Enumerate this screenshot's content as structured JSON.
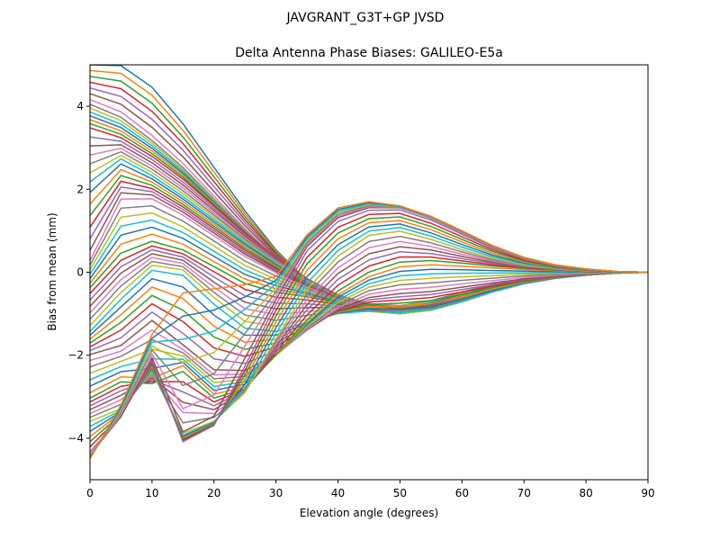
{
  "chart_data": {
    "type": "line",
    "suptitle": "JAVGRANT_G3T+GP JVSD",
    "title": "Delta Antenna Phase Biases: GALILEO-E5a",
    "xlabel": "Elevation angle (degrees)",
    "ylabel": "Bias from mean (mm)",
    "xlim": [
      0,
      90
    ],
    "ylim": [
      -5,
      5
    ],
    "xticks": [
      0,
      10,
      20,
      30,
      40,
      50,
      60,
      70,
      80,
      90
    ],
    "yticks": [
      -4,
      -2,
      0,
      2,
      4
    ],
    "xtick_labels": [
      "0",
      "10",
      "20",
      "30",
      "40",
      "50",
      "60",
      "70",
      "80",
      "90"
    ],
    "ytick_labels": [
      "−4",
      "−2",
      "0",
      "2",
      "4"
    ],
    "grid": false,
    "legend": "none",
    "x": [
      0,
      5,
      10,
      15,
      20,
      25,
      30,
      35,
      40,
      45,
      50,
      55,
      60,
      65,
      70,
      75,
      80,
      85,
      90
    ],
    "series_count": 72,
    "series_note": "one curve per azimuth bin; curves vary smoothly from steep positive start (≈+5 mm at 0°) to steep negative start (≈−4.5 mm at 0°), all converging to 0 mm at 90°",
    "series": [
      {
        "name": "s1",
        "values": [
          5.0,
          4.98,
          4.46,
          3.58,
          2.53,
          1.48,
          0.54,
          -0.2,
          -0.69,
          -0.92,
          -0.91,
          -0.73,
          -0.48,
          -0.29,
          -0.16,
          -0.08,
          -0.04,
          -0.02,
          0.0
        ]
      },
      {
        "name": "s2",
        "values": [
          4.1,
          3.78,
          3.21,
          2.55,
          1.78,
          1.02,
          0.33,
          -0.2,
          -0.55,
          -0.75,
          -0.8,
          -0.68,
          -0.48,
          -0.29,
          -0.16,
          -0.08,
          -0.04,
          -0.02,
          0.0
        ]
      },
      {
        "name": "s3",
        "values": [
          3.5,
          3.25,
          2.8,
          2.25,
          1.6,
          0.95,
          0.35,
          -0.15,
          -0.55,
          -0.8,
          -0.9,
          -0.8,
          -0.6,
          -0.38,
          -0.22,
          -0.12,
          -0.06,
          -0.02,
          0.0
        ]
      },
      {
        "name": "s4",
        "values": [
          2.1,
          2.7,
          2.3,
          1.8,
          1.25,
          0.7,
          0.2,
          -0.25,
          -0.6,
          -0.85,
          -0.95,
          -0.85,
          -0.65,
          -0.42,
          -0.25,
          -0.13,
          -0.06,
          -0.02,
          0.0
        ]
      },
      {
        "name": "s5",
        "values": [
          0.3,
          1.8,
          1.8,
          1.4,
          0.9,
          0.4,
          0.0,
          -0.35,
          -0.65,
          -0.85,
          -0.95,
          -0.88,
          -0.68,
          -0.45,
          -0.27,
          -0.14,
          -0.07,
          -0.02,
          0.0
        ]
      },
      {
        "name": "s6",
        "values": [
          -0.4,
          0.4,
          0.7,
          0.5,
          0.1,
          -0.3,
          -0.5,
          -0.6,
          -0.75,
          -0.9,
          -1.0,
          -0.9,
          -0.7,
          -0.46,
          -0.27,
          -0.14,
          -0.07,
          -0.02,
          0.0
        ]
      },
      {
        "name": "s7",
        "values": [
          -1.4,
          -0.6,
          0.1,
          0.0,
          -0.7,
          -1.3,
          -1.4,
          -1.2,
          -1.0,
          -0.95,
          -1.0,
          -0.92,
          -0.72,
          -0.48,
          -0.28,
          -0.15,
          -0.07,
          -0.02,
          0.0
        ]
      },
      {
        "name": "s8",
        "values": [
          -2.0,
          -1.8,
          -1.2,
          -1.8,
          -2.4,
          -2.4,
          -2.0,
          -1.4,
          -0.9,
          -0.6,
          -0.5,
          -0.45,
          -0.35,
          -0.25,
          -0.16,
          -0.09,
          -0.04,
          -0.01,
          0.0
        ]
      },
      {
        "name": "s9",
        "values": [
          -3.0,
          -2.6,
          -2.7,
          -2.3,
          -3.0,
          -2.8,
          -2.0,
          -1.2,
          -0.5,
          -0.05,
          0.2,
          0.25,
          0.2,
          0.14,
          0.09,
          0.05,
          0.02,
          0.01,
          0.0
        ]
      },
      {
        "name": "s10",
        "values": [
          -3.6,
          -3.3,
          -2.4,
          -3.9,
          -3.6,
          -2.9,
          -1.6,
          -0.4,
          0.4,
          0.9,
          1.0,
          0.8,
          0.55,
          0.33,
          0.18,
          0.09,
          0.04,
          0.01,
          0.0
        ]
      },
      {
        "name": "s11",
        "values": [
          -4.4,
          -3.5,
          -2.1,
          -4.1,
          -3.7,
          -2.2,
          -0.7,
          0.6,
          1.3,
          1.55,
          1.55,
          1.3,
          0.95,
          0.6,
          0.33,
          0.16,
          0.07,
          0.02,
          0.0
        ]
      },
      {
        "name": "s12",
        "values": [
          -4.5,
          -3.2,
          -1.5,
          -0.5,
          -0.4,
          -0.3,
          -0.1,
          0.9,
          1.55,
          1.7,
          1.6,
          1.35,
          1.0,
          0.64,
          0.36,
          0.18,
          0.08,
          0.02,
          0.0
        ]
      }
    ]
  }
}
